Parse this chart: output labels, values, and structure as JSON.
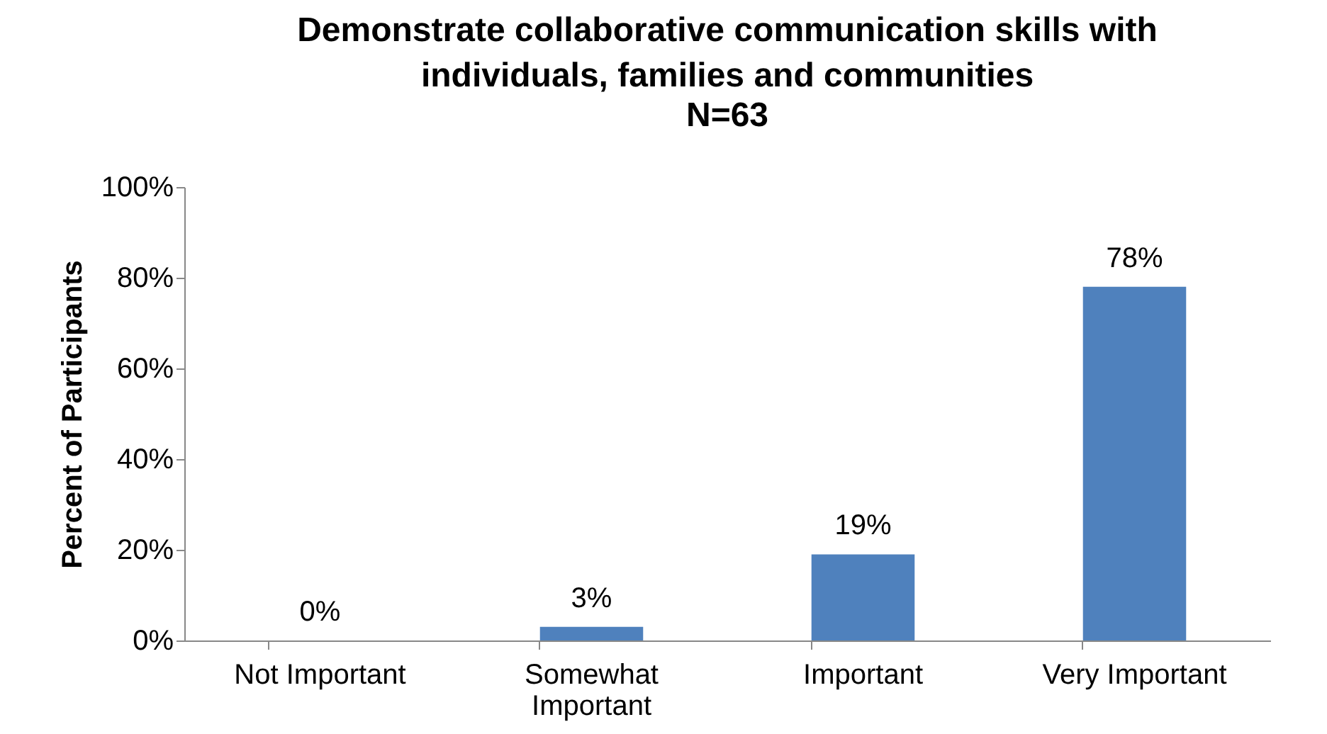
{
  "chart_data": {
    "type": "bar",
    "title": "Demonstrate collaborative communication skills with individuals, families and communities",
    "subtitle": "N=63",
    "ylabel": "Percent of Participants",
    "categories": [
      "Not Important",
      "Somewhat Important",
      "Important",
      "Very Important"
    ],
    "values": [
      0,
      3,
      19,
      78
    ],
    "value_labels": [
      "0%",
      "3%",
      "19%",
      "78%"
    ],
    "color": "#4f81bd",
    "ylim": [
      0,
      100
    ],
    "yticks": [
      {
        "value": 0,
        "label": "0%"
      },
      {
        "value": 20,
        "label": "20%"
      },
      {
        "value": 40,
        "label": "40%"
      },
      {
        "value": 60,
        "label": "60%"
      },
      {
        "value": 80,
        "label": "80%"
      },
      {
        "value": 100,
        "label": "100%"
      }
    ],
    "grid": false
  }
}
